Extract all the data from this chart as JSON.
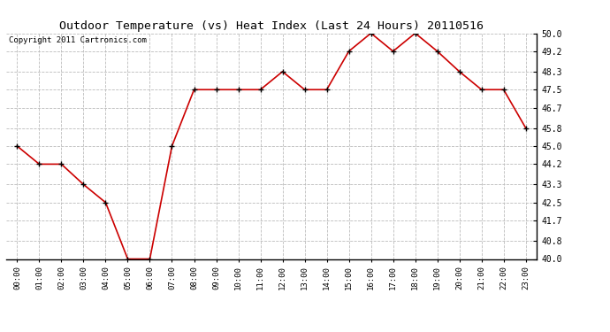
{
  "title": "Outdoor Temperature (vs) Heat Index (Last 24 Hours) 20110516",
  "copyright": "Copyright 2011 Cartronics.com",
  "x_labels": [
    "00:00",
    "01:00",
    "02:00",
    "03:00",
    "04:00",
    "05:00",
    "06:00",
    "07:00",
    "08:00",
    "09:00",
    "10:00",
    "11:00",
    "12:00",
    "13:00",
    "14:00",
    "15:00",
    "16:00",
    "17:00",
    "18:00",
    "19:00",
    "20:00",
    "21:00",
    "22:00",
    "23:00"
  ],
  "y_values": [
    45.0,
    44.2,
    44.2,
    43.3,
    42.5,
    40.0,
    40.0,
    45.0,
    47.5,
    47.5,
    47.5,
    47.5,
    48.3,
    47.5,
    47.5,
    49.2,
    50.0,
    49.2,
    50.0,
    49.2,
    48.3,
    47.5,
    47.5,
    45.8
  ],
  "ylim_min": 40.0,
  "ylim_max": 50.0,
  "yticks": [
    40.0,
    40.8,
    41.7,
    42.5,
    43.3,
    44.2,
    45.0,
    45.8,
    46.7,
    47.5,
    48.3,
    49.2,
    50.0
  ],
  "line_color": "#cc0000",
  "marker": "+",
  "marker_color": "#000000",
  "bg_color": "#ffffff",
  "grid_color": "#bbbbbb",
  "title_fontsize": 9.5,
  "copyright_fontsize": 6.5
}
